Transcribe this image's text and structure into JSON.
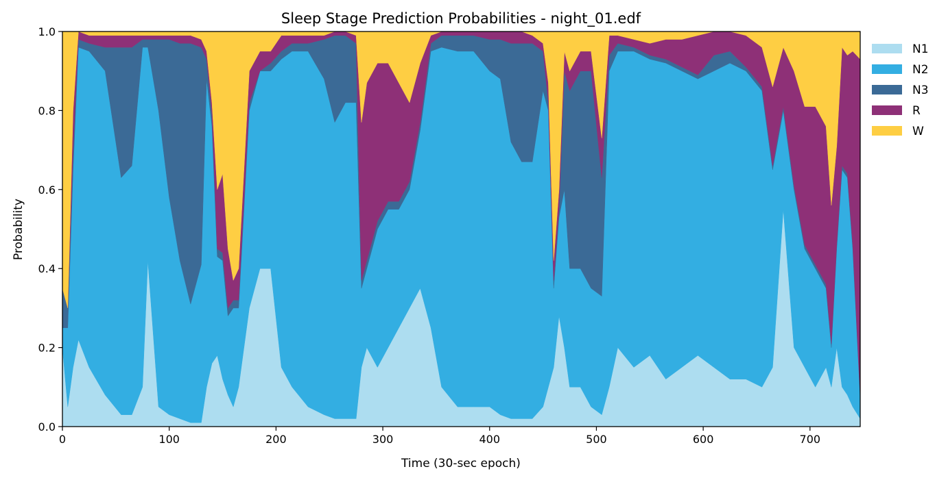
{
  "chart_data": {
    "type": "area",
    "stacked": true,
    "title": "Sleep Stage Prediction Probabilities - night_01.edf",
    "xlabel": "Time (30-sec epoch)",
    "ylabel": "Probability",
    "xlim": [
      0,
      747
    ],
    "ylim": [
      0,
      1
    ],
    "x_ticks": [
      0,
      100,
      200,
      300,
      400,
      500,
      600,
      700
    ],
    "y_ticks": [
      "0.0",
      "0.2",
      "0.4",
      "0.6",
      "0.8",
      "1.0"
    ],
    "legend_position": "outside-right-top",
    "grid": false,
    "x": [
      0,
      5,
      10,
      15,
      25,
      40,
      55,
      65,
      75,
      80,
      90,
      100,
      110,
      120,
      130,
      135,
      140,
      145,
      150,
      155,
      160,
      165,
      175,
      185,
      195,
      205,
      215,
      230,
      245,
      255,
      265,
      275,
      280,
      285,
      295,
      305,
      315,
      325,
      335,
      345,
      355,
      370,
      385,
      400,
      410,
      420,
      430,
      440,
      450,
      455,
      460,
      465,
      470,
      475,
      485,
      495,
      505,
      512,
      520,
      535,
      550,
      565,
      580,
      595,
      610,
      625,
      640,
      655,
      665,
      675,
      685,
      695,
      705,
      715,
      720,
      725,
      730,
      735,
      740,
      747
    ],
    "series": [
      {
        "name": "N1",
        "color": "#ADDDF0",
        "values": [
          0.2,
          0.05,
          0.15,
          0.22,
          0.15,
          0.08,
          0.03,
          0.03,
          0.1,
          0.42,
          0.05,
          0.03,
          0.02,
          0.01,
          0.01,
          0.1,
          0.16,
          0.18,
          0.12,
          0.08,
          0.05,
          0.1,
          0.3,
          0.4,
          0.4,
          0.15,
          0.1,
          0.05,
          0.03,
          0.02,
          0.02,
          0.02,
          0.15,
          0.2,
          0.15,
          0.2,
          0.25,
          0.3,
          0.35,
          0.25,
          0.1,
          0.05,
          0.05,
          0.05,
          0.03,
          0.02,
          0.02,
          0.02,
          0.05,
          0.1,
          0.15,
          0.28,
          0.2,
          0.1,
          0.1,
          0.05,
          0.03,
          0.1,
          0.2,
          0.15,
          0.18,
          0.12,
          0.15,
          0.18,
          0.15,
          0.12,
          0.12,
          0.1,
          0.15,
          0.55,
          0.2,
          0.15,
          0.1,
          0.15,
          0.1,
          0.2,
          0.1,
          0.08,
          0.05,
          0.02
        ]
      },
      {
        "name": "N2",
        "color": "#33AEE2",
        "values": [
          0.05,
          0.2,
          0.5,
          0.74,
          0.8,
          0.82,
          0.6,
          0.63,
          0.86,
          0.54,
          0.75,
          0.55,
          0.4,
          0.3,
          0.4,
          0.78,
          0.6,
          0.25,
          0.3,
          0.2,
          0.25,
          0.2,
          0.5,
          0.5,
          0.5,
          0.78,
          0.85,
          0.9,
          0.85,
          0.75,
          0.8,
          0.8,
          0.2,
          0.2,
          0.35,
          0.35,
          0.3,
          0.3,
          0.4,
          0.7,
          0.86,
          0.9,
          0.9,
          0.85,
          0.85,
          0.7,
          0.65,
          0.65,
          0.8,
          0.7,
          0.2,
          0.25,
          0.4,
          0.3,
          0.3,
          0.3,
          0.3,
          0.8,
          0.75,
          0.8,
          0.75,
          0.8,
          0.75,
          0.7,
          0.75,
          0.8,
          0.78,
          0.75,
          0.5,
          0.25,
          0.4,
          0.3,
          0.3,
          0.2,
          0.1,
          0.25,
          0.55,
          0.55,
          0.4,
          0.05
        ]
      },
      {
        "name": "N3",
        "color": "#3B6A96",
        "values": [
          0.1,
          0.05,
          0.05,
          0.02,
          0.02,
          0.06,
          0.33,
          0.3,
          0.02,
          0.02,
          0.18,
          0.4,
          0.55,
          0.66,
          0.55,
          0.05,
          0.03,
          0.02,
          0.02,
          0.02,
          0.02,
          0.02,
          0.02,
          0.0,
          0.02,
          0.02,
          0.02,
          0.02,
          0.1,
          0.22,
          0.17,
          0.15,
          0.02,
          0.02,
          0.02,
          0.02,
          0.02,
          0.02,
          0.02,
          0.02,
          0.03,
          0.04,
          0.04,
          0.08,
          0.1,
          0.25,
          0.3,
          0.3,
          0.1,
          0.02,
          0.02,
          0.02,
          0.3,
          0.45,
          0.5,
          0.55,
          0.3,
          0.04,
          0.02,
          0.01,
          0.01,
          0.01,
          0.01,
          0.01,
          0.04,
          0.03,
          0.01,
          0.01,
          0.01,
          0.01,
          0.01,
          0.01,
          0.01,
          0.01,
          0.01,
          0.01,
          0.01,
          0.01,
          0.01,
          0.01
        ]
      },
      {
        "name": "R",
        "color": "#8E3077",
        "values": [
          0.0,
          0.0,
          0.1,
          0.02,
          0.02,
          0.03,
          0.03,
          0.03,
          0.01,
          0.01,
          0.01,
          0.01,
          0.02,
          0.02,
          0.02,
          0.02,
          0.03,
          0.15,
          0.2,
          0.15,
          0.05,
          0.08,
          0.08,
          0.05,
          0.03,
          0.04,
          0.02,
          0.02,
          0.01,
          0.01,
          0.01,
          0.02,
          0.4,
          0.45,
          0.4,
          0.35,
          0.3,
          0.2,
          0.15,
          0.02,
          0.01,
          0.01,
          0.01,
          0.02,
          0.02,
          0.03,
          0.03,
          0.02,
          0.02,
          0.05,
          0.05,
          0.05,
          0.05,
          0.05,
          0.05,
          0.05,
          0.1,
          0.05,
          0.02,
          0.02,
          0.03,
          0.05,
          0.07,
          0.1,
          0.06,
          0.05,
          0.08,
          0.1,
          0.2,
          0.15,
          0.29,
          0.35,
          0.4,
          0.4,
          0.35,
          0.25,
          0.3,
          0.3,
          0.49,
          0.85
        ]
      },
      {
        "name": "W",
        "color": "#FECE43",
        "values": [
          0.65,
          0.7,
          0.2,
          0.0,
          0.01,
          0.01,
          0.01,
          0.01,
          0.01,
          0.01,
          0.01,
          0.01,
          0.01,
          0.01,
          0.02,
          0.05,
          0.18,
          0.4,
          0.36,
          0.55,
          0.63,
          0.6,
          0.1,
          0.05,
          0.05,
          0.01,
          0.01,
          0.01,
          0.01,
          0.0,
          0.0,
          0.01,
          0.23,
          0.13,
          0.08,
          0.08,
          0.13,
          0.18,
          0.08,
          0.01,
          0.0,
          0.0,
          0.0,
          0.0,
          0.0,
          0.0,
          0.0,
          0.01,
          0.03,
          0.13,
          0.58,
          0.4,
          0.05,
          0.1,
          0.05,
          0.05,
          0.27,
          0.01,
          0.01,
          0.02,
          0.03,
          0.02,
          0.02,
          0.01,
          0.0,
          0.0,
          0.01,
          0.04,
          0.14,
          0.04,
          0.1,
          0.19,
          0.19,
          0.24,
          0.44,
          0.29,
          0.04,
          0.06,
          0.05,
          0.07
        ]
      }
    ]
  }
}
